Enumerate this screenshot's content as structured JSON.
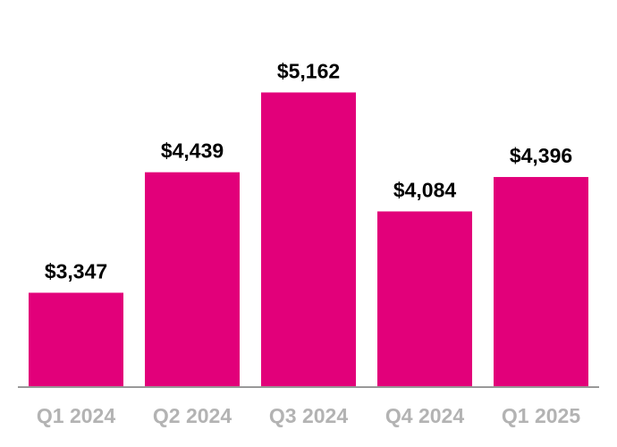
{
  "chart_data": {
    "type": "bar",
    "title": "",
    "xlabel": "",
    "ylabel": "",
    "categories": [
      "Q1 2024",
      "Q2 2024",
      "Q3 2024",
      "Q4 2024",
      "Q1 2025"
    ],
    "values": [
      3347,
      4439,
      5162,
      4084,
      4396
    ],
    "data_labels": [
      "$3,347",
      "$4,439",
      "$5,162",
      "$4,084",
      "$4,396"
    ],
    "ylim": [
      2500,
      6000
    ],
    "grid": false,
    "legend": "none",
    "colors": {
      "bar": "#E2007A",
      "axis": "#999999",
      "category_label": "#B3B3B3",
      "value_label": "#000000"
    }
  }
}
